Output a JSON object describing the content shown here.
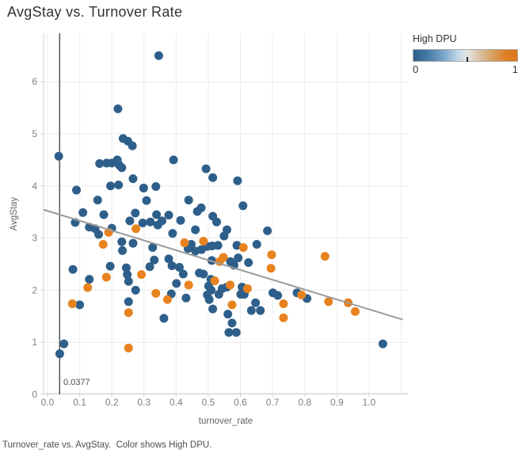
{
  "title": "AvgStay vs. Turnover Rate",
  "caption": "Turnover_rate vs. AvgStay.  Color shows High DPU.",
  "legend": {
    "title": "High DPU",
    "min_label": "0",
    "max_label": "1",
    "tick_value": 0.52
  },
  "axes": {
    "x_title": "turnover_rate",
    "y_title": "AvgStay"
  },
  "colors": {
    "blue": "#2e5f8a",
    "orange": "#e8821e",
    "trend_line": "#9b9b9b",
    "reference_line": "#555555",
    "grid": "#ececec",
    "axis_line": "#d0d0d0",
    "tick_label": "#7f7f7f"
  },
  "chart_data": {
    "type": "scatter",
    "title": "AvgStay vs. Turnover Rate",
    "xlabel": "turnover_rate",
    "ylabel": "AvgStay",
    "xlim": [
      -0.0123,
      1.121
    ],
    "ylim": [
      0,
      6.93
    ],
    "x_ticks": [
      0.0,
      0.1,
      0.2,
      0.3,
      0.4,
      0.5,
      0.6,
      0.7,
      0.8,
      0.9,
      1.0
    ],
    "x_tick_labels": [
      "0.0",
      "0.1",
      "0.2",
      "0.3",
      "0.4",
      "0.5",
      "0.6",
      "0.7",
      "0.8",
      "0.9",
      "1.0"
    ],
    "x_grid": [
      0.0,
      0.1,
      0.2,
      0.3,
      0.4,
      0.5,
      0.6,
      0.7,
      0.8,
      0.9,
      1.0,
      1.1
    ],
    "y_ticks": [
      0,
      1,
      2,
      3,
      4,
      5,
      6
    ],
    "grid": true,
    "legend_position": "top-right",
    "reference_line": {
      "x": 0.0377,
      "label": "0.0377"
    },
    "trend_line": {
      "x1": -0.0123,
      "y1": 3.545,
      "x2": 1.105,
      "y2": 1.435
    },
    "series": [
      {
        "name": "High DPU = 0",
        "color": "#2e5f8a",
        "points": [
          [
            0.346,
            6.5
          ],
          [
            0.219,
            5.48
          ],
          [
            0.235,
            4.91
          ],
          [
            0.25,
            4.86
          ],
          [
            0.264,
            4.77
          ],
          [
            0.035,
            4.57
          ],
          [
            0.162,
            4.43
          ],
          [
            0.184,
            4.44
          ],
          [
            0.2,
            4.44
          ],
          [
            0.217,
            4.5
          ],
          [
            0.223,
            4.4
          ],
          [
            0.231,
            4.35
          ],
          [
            0.392,
            4.5
          ],
          [
            0.493,
            4.33
          ],
          [
            0.514,
            4.16
          ],
          [
            0.591,
            4.1
          ],
          [
            0.266,
            4.14
          ],
          [
            0.196,
            4.0
          ],
          [
            0.221,
            4.02
          ],
          [
            0.09,
            3.92
          ],
          [
            0.299,
            3.96
          ],
          [
            0.337,
            3.99
          ],
          [
            0.156,
            3.73
          ],
          [
            0.308,
            3.72
          ],
          [
            0.439,
            3.73
          ],
          [
            0.11,
            3.49
          ],
          [
            0.175,
            3.45
          ],
          [
            0.273,
            3.48
          ],
          [
            0.339,
            3.45
          ],
          [
            0.377,
            3.44
          ],
          [
            0.466,
            3.51
          ],
          [
            0.478,
            3.58
          ],
          [
            0.514,
            3.42
          ],
          [
            0.608,
            3.62
          ],
          [
            0.086,
            3.3
          ],
          [
            0.13,
            3.21
          ],
          [
            0.148,
            3.18
          ],
          [
            0.159,
            3.07
          ],
          [
            0.2,
            3.19
          ],
          [
            0.256,
            3.33
          ],
          [
            0.296,
            3.29
          ],
          [
            0.32,
            3.31
          ],
          [
            0.343,
            3.25
          ],
          [
            0.356,
            3.33
          ],
          [
            0.414,
            3.34
          ],
          [
            0.526,
            3.31
          ],
          [
            0.684,
            3.14
          ],
          [
            0.46,
            3.16
          ],
          [
            0.558,
            3.16
          ],
          [
            0.549,
            3.04
          ],
          [
            0.389,
            3.09
          ],
          [
            0.231,
            2.93
          ],
          [
            0.266,
            2.9
          ],
          [
            0.233,
            2.76
          ],
          [
            0.327,
            2.82
          ],
          [
            0.332,
            2.58
          ],
          [
            0.447,
            2.88
          ],
          [
            0.651,
            2.88
          ],
          [
            0.589,
            2.86
          ],
          [
            0.437,
            2.8
          ],
          [
            0.46,
            2.75
          ],
          [
            0.479,
            2.78
          ],
          [
            0.497,
            2.84
          ],
          [
            0.512,
            2.85
          ],
          [
            0.53,
            2.86
          ],
          [
            0.569,
            2.55
          ],
          [
            0.58,
            2.48
          ],
          [
            0.593,
            2.62
          ],
          [
            0.625,
            2.53
          ],
          [
            0.511,
            2.57
          ],
          [
            0.377,
            2.6
          ],
          [
            0.387,
            2.47
          ],
          [
            0.41,
            2.44
          ],
          [
            0.422,
            2.31
          ],
          [
            0.401,
            2.13
          ],
          [
            0.472,
            2.33
          ],
          [
            0.485,
            2.31
          ],
          [
            0.508,
            2.21
          ],
          [
            0.501,
            2.08
          ],
          [
            0.509,
            2.0
          ],
          [
            0.497,
            1.91
          ],
          [
            0.503,
            1.82
          ],
          [
            0.514,
            1.64
          ],
          [
            0.533,
            1.92
          ],
          [
            0.543,
            2.03
          ],
          [
            0.558,
            2.06
          ],
          [
            0.561,
            1.54
          ],
          [
            0.601,
            1.92
          ],
          [
            0.612,
            1.92
          ],
          [
            0.605,
            2.06
          ],
          [
            0.385,
            1.93
          ],
          [
            0.431,
            1.85
          ],
          [
            0.647,
            1.76
          ],
          [
            0.634,
            1.61
          ],
          [
            0.662,
            1.61
          ],
          [
            0.701,
            1.95
          ],
          [
            0.716,
            1.9
          ],
          [
            0.574,
            1.37
          ],
          [
            0.564,
            1.19
          ],
          [
            0.587,
            1.19
          ],
          [
            0.079,
            2.4
          ],
          [
            0.195,
            2.46
          ],
          [
            0.245,
            2.43
          ],
          [
            0.248,
            2.3
          ],
          [
            0.252,
            2.17
          ],
          [
            0.13,
            2.21
          ],
          [
            0.318,
            2.45
          ],
          [
            0.274,
            2.0
          ],
          [
            0.252,
            1.78
          ],
          [
            0.1,
            1.72
          ],
          [
            0.362,
            1.46
          ],
          [
            0.051,
            0.97
          ],
          [
            0.776,
            1.95
          ],
          [
            0.807,
            1.84
          ],
          [
            1.043,
            0.97
          ],
          [
            0.038,
            0.78
          ]
        ]
      },
      {
        "name": "High DPU = 1",
        "color": "#e8821e",
        "points": [
          [
            0.19,
            3.11
          ],
          [
            0.275,
            3.18
          ],
          [
            0.173,
            2.88
          ],
          [
            0.426,
            2.91
          ],
          [
            0.485,
            2.94
          ],
          [
            0.609,
            2.82
          ],
          [
            0.697,
            2.68
          ],
          [
            0.695,
            2.42
          ],
          [
            0.547,
            2.63
          ],
          [
            0.535,
            2.55
          ],
          [
            0.863,
            2.65
          ],
          [
            0.183,
            2.25
          ],
          [
            0.292,
            2.3
          ],
          [
            0.125,
            2.05
          ],
          [
            0.439,
            2.1
          ],
          [
            0.52,
            2.18
          ],
          [
            0.568,
            2.1
          ],
          [
            0.622,
            2.03
          ],
          [
            0.337,
            1.94
          ],
          [
            0.373,
            1.82
          ],
          [
            0.077,
            1.74
          ],
          [
            0.574,
            1.72
          ],
          [
            0.734,
            1.74
          ],
          [
            0.734,
            1.47
          ],
          [
            0.79,
            1.91
          ],
          [
            0.874,
            1.78
          ],
          [
            0.935,
            1.76
          ],
          [
            0.957,
            1.59
          ],
          [
            0.252,
            1.57
          ],
          [
            0.252,
            0.89
          ]
        ]
      }
    ]
  }
}
